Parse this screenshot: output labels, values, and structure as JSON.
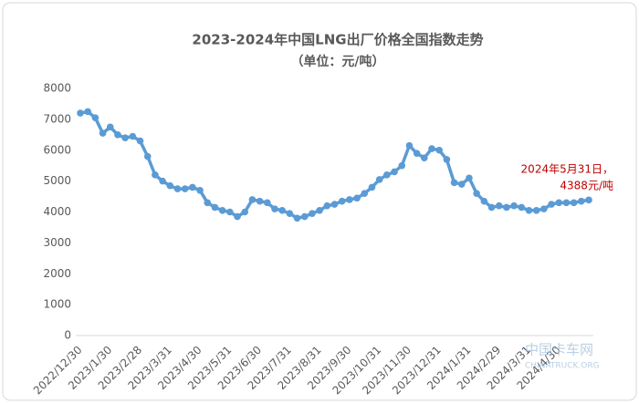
{
  "chart_data": {
    "type": "line",
    "title": "2023-2024年中国LNG出厂价格全国指数走势",
    "subtitle": "（单位：元/吨）",
    "annotation": [
      "2024年5月31日，",
      "4388元/吨"
    ],
    "watermark": [
      "中国卡车网",
      "CHINATRUCK.ORG"
    ],
    "categories": [
      "2022/12/30",
      null,
      null,
      null,
      "2023/1/30",
      null,
      null,
      null,
      "2023/2/28",
      null,
      null,
      null,
      "2023/3/31",
      null,
      null,
      null,
      "2023/4/30",
      null,
      null,
      null,
      "2023/5/31",
      null,
      null,
      null,
      "2023/6/30",
      null,
      null,
      null,
      "2023/7/31",
      null,
      null,
      null,
      "2023/8/31",
      null,
      null,
      null,
      "2023/9/30",
      null,
      null,
      null,
      "2023/10/31",
      null,
      null,
      null,
      "2023/11/30",
      null,
      null,
      null,
      "2023/12/31",
      null,
      null,
      null,
      "2024/1/31",
      null,
      null,
      null,
      "2024/2/29",
      null,
      null,
      null,
      "2024/3/31",
      null,
      null,
      null,
      "2024/4/30",
      null,
      null,
      null,
      null
    ],
    "series": [
      {
        "name": "LNG出厂价格全国指数",
        "color": "#5b9bd5",
        "values": [
          7200,
          7250,
          7050,
          6550,
          6750,
          6500,
          6400,
          6450,
          6300,
          5800,
          5200,
          5000,
          4850,
          4750,
          4750,
          4800,
          4700,
          4300,
          4150,
          4050,
          4000,
          3850,
          4000,
          4400,
          4350,
          4300,
          4100,
          4050,
          3950,
          3800,
          3850,
          3950,
          4050,
          4200,
          4250,
          4350,
          4400,
          4450,
          4600,
          4800,
          5050,
          5200,
          5300,
          5500,
          6150,
          5900,
          5750,
          6050,
          6000,
          5700,
          4950,
          4900,
          5100,
          4600,
          4350,
          4150,
          4200,
          4150,
          4200,
          4150,
          4050,
          4050,
          4100,
          4250,
          4300,
          4300,
          4300,
          4350,
          4388
        ]
      }
    ],
    "ylim": [
      0,
      8000
    ],
    "yticks": [
      0,
      1000,
      2000,
      3000,
      4000,
      5000,
      6000,
      7000,
      8000
    ],
    "annotation_color": "#c00000",
    "grid": false
  }
}
